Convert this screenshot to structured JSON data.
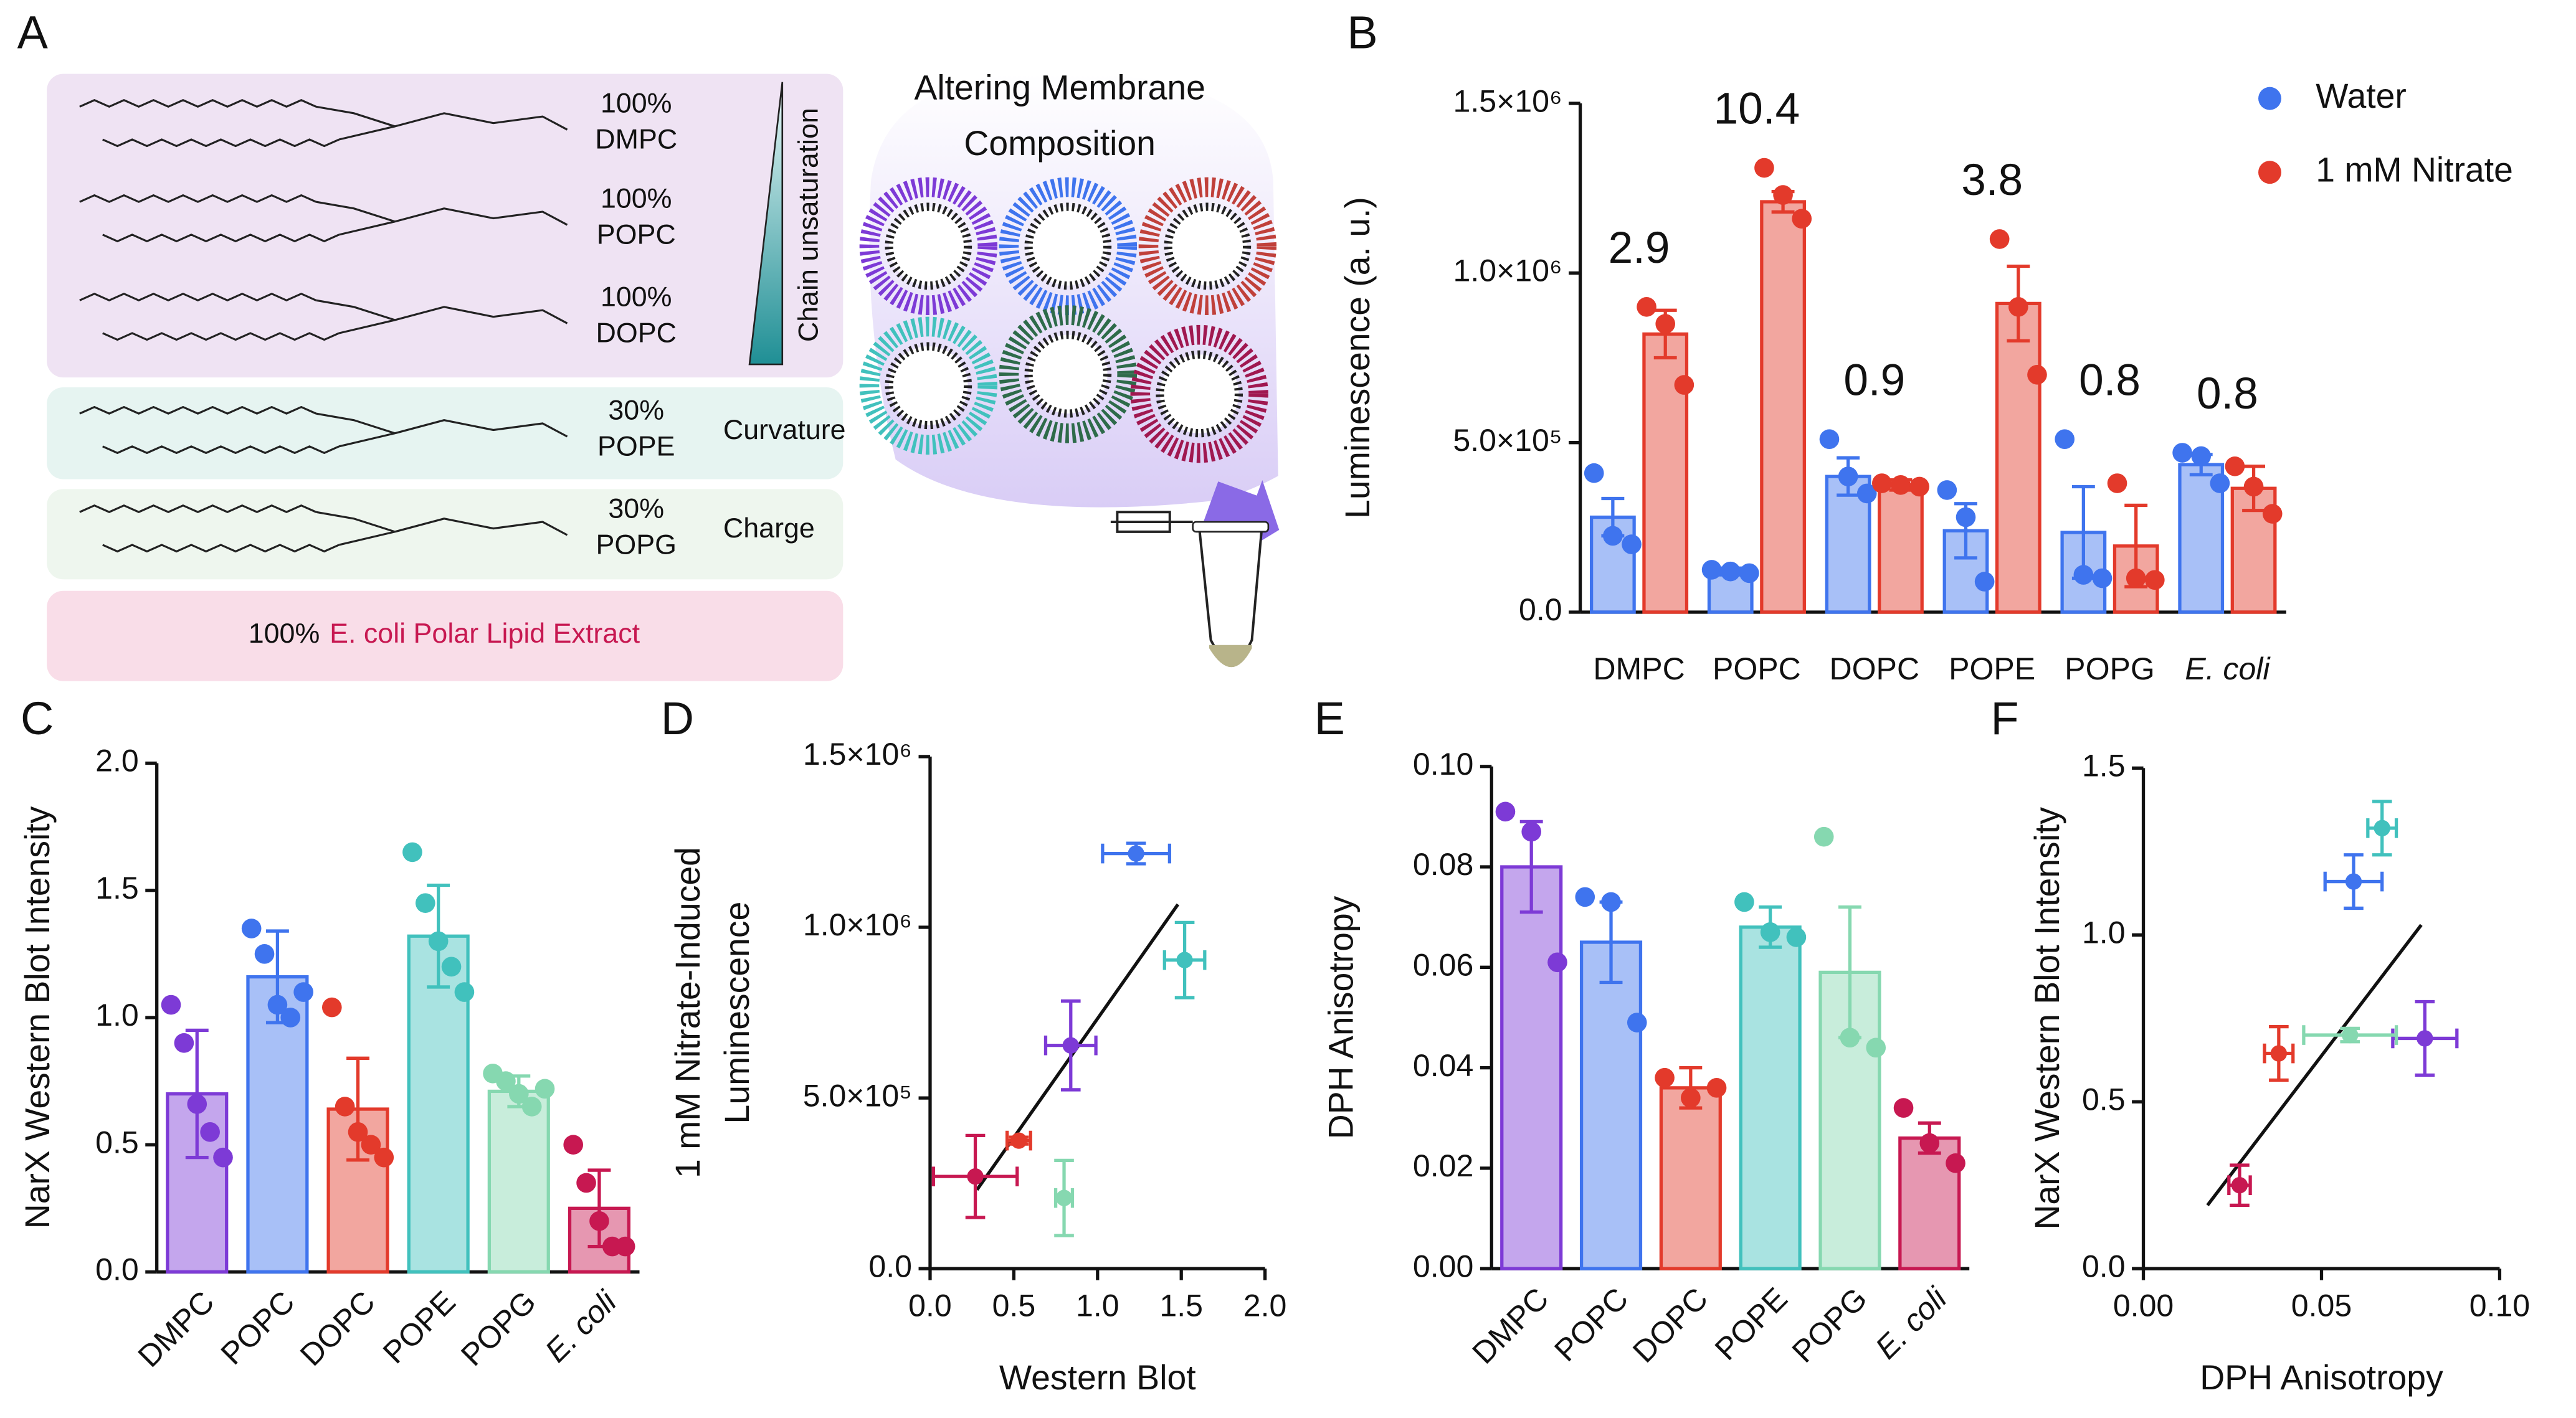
{
  "diagram": {
    "panel": "A",
    "title_lines": [
      "Altering Membrane",
      "Composition"
    ],
    "gradient_label": "Chain unsaturation",
    "lipids": [
      {
        "percent": "100%",
        "name": "DMPC",
        "color": "#7d3ad6"
      },
      {
        "percent": "100%",
        "name": "POPC",
        "color": "#3f74ee"
      },
      {
        "percent": "100%",
        "name": "DOPC",
        "color": "#e33a2b"
      },
      {
        "percent": "30%",
        "name": "POPE",
        "color": "#41c1bd",
        "property": "Curvature"
      },
      {
        "percent": "30%",
        "name": "POPG",
        "color": "#86d8b0",
        "property": "Charge"
      }
    ],
    "extract": {
      "percent": "100%",
      "name": "E. coli Polar Lipid Extract"
    }
  },
  "chart_data": [
    {
      "type": "bar",
      "panel": "B",
      "ylabel": "Luminescence  (a. u.)",
      "categories": [
        "DMPC",
        "POPC",
        "DOPC",
        "POPE",
        "POPG",
        "E. coli"
      ],
      "series": [
        {
          "name": "Water",
          "color": "#3f74ee",
          "values": [
            280000,
            120000,
            400000,
            240000,
            235000,
            435000
          ],
          "errors": [
            55000,
            10000,
            55000,
            80000,
            135000,
            30000
          ],
          "points": [
            [
              410000,
              225000,
              200000
            ],
            [
              125000,
              120000,
              115000
            ],
            [
              510000,
              400000,
              350000
            ],
            [
              360000,
              280000,
              90000
            ],
            [
              510000,
              110000,
              100000
            ],
            [
              470000,
              460000,
              380000
            ]
          ]
        },
        {
          "name": "1 mM Nitrate",
          "color": "#e33a2b",
          "values": [
            820000,
            1210000,
            375000,
            910000,
            195000,
            365000
          ],
          "errors": [
            70000,
            30000,
            15000,
            110000,
            120000,
            65000
          ],
          "points": [
            [
              900000,
              850000,
              670000
            ],
            [
              1310000,
              1230000,
              1160000
            ],
            [
              380000,
              375000,
              370000
            ],
            [
              1100000,
              900000,
              700000
            ],
            [
              380000,
              100000,
              95000
            ],
            [
              430000,
              370000,
              290000
            ]
          ]
        }
      ],
      "annotations": [
        "2.9",
        "10.4",
        "0.9",
        "3.8",
        "0.8",
        "0.8"
      ],
      "ylim": [
        0,
        1500000
      ],
      "yticks": [
        {
          "value": 0,
          "label": "0.0"
        },
        {
          "value": 500000,
          "label": "5.0×10⁵"
        },
        {
          "value": 1000000,
          "label": "1.0×10⁶"
        },
        {
          "value": 1500000,
          "label": "1.5×10⁶"
        }
      ],
      "legend": "top-right"
    },
    {
      "type": "bar",
      "panel": "C",
      "ylabel": "NarX Western Blot Intensity",
      "categories": [
        "DMPC",
        "POPC",
        "DOPC",
        "POPE",
        "POPG",
        "E. coli"
      ],
      "colors": [
        "#7d3ad6",
        "#3f74ee",
        "#e33a2b",
        "#41c1bd",
        "#86d8b0",
        "#c71851"
      ],
      "values": [
        0.7,
        1.16,
        0.64,
        1.32,
        0.71,
        0.25
      ],
      "errors": [
        0.25,
        0.18,
        0.2,
        0.2,
        0.06,
        0.15
      ],
      "points": [
        [
          1.05,
          0.9,
          0.66,
          0.55,
          0.45
        ],
        [
          1.35,
          1.25,
          1.05,
          1.0,
          1.1
        ],
        [
          1.04,
          0.65,
          0.55,
          0.5,
          0.45
        ],
        [
          1.65,
          1.45,
          1.3,
          1.2,
          1.1
        ],
        [
          0.78,
          0.75,
          0.7,
          0.65,
          0.72
        ],
        [
          0.5,
          0.35,
          0.2,
          0.1,
          0.1
        ]
      ],
      "ylim": [
        0,
        2
      ],
      "yticks": [
        {
          "value": 0,
          "label": "0.0"
        },
        0.5,
        {
          "value": 1,
          "label": "1.0"
        },
        1.5,
        {
          "value": 2,
          "label": "2.0"
        }
      ]
    },
    {
      "type": "scatter",
      "panel": "D",
      "xlabel": "Western Blot",
      "ylabel": [
        "1 mM Nitrate-Induced",
        "Luminescence"
      ],
      "x": [
        0.84,
        1.23,
        0.53,
        1.52,
        0.8,
        0.27
      ],
      "y": [
        654000,
        1216000,
        375000,
        904000,
        207000,
        270000
      ],
      "xerr": [
        0.15,
        0.2,
        0.07,
        0.12,
        0.05,
        0.25
      ],
      "yerr": [
        130000,
        30000,
        10000,
        110000,
        110000,
        120000
      ],
      "colors": [
        "#7d3ad6",
        "#3f74ee",
        "#e33a2b",
        "#41c1bd",
        "#86d8b0",
        "#c71851"
      ],
      "fit_line": {
        "x": [
          0.28,
          1.48
        ],
        "y": [
          231000,
          1067000
        ]
      },
      "xlim": [
        0,
        2
      ],
      "xticks": [
        {
          "value": 0,
          "label": "0.0"
        },
        0.5,
        {
          "value": 1,
          "label": "1.0"
        },
        1.5,
        {
          "value": 2,
          "label": "2.0"
        }
      ],
      "ylim": [
        0,
        1500000
      ],
      "yticks": [
        {
          "value": 0,
          "label": "0.0"
        },
        {
          "value": 500000,
          "label": "5.0×10⁵"
        },
        {
          "value": 1000000,
          "label": "1.0×10⁶"
        },
        {
          "value": 1500000,
          "label": "1.5×10⁶"
        }
      ]
    },
    {
      "type": "bar",
      "panel": "E",
      "ylabel": "DPH Anisotropy",
      "categories": [
        "DMPC",
        "POPC",
        "DOPC",
        "POPE",
        "POPG",
        "E. coli"
      ],
      "colors": [
        "#7d3ad6",
        "#3f74ee",
        "#e33a2b",
        "#41c1bd",
        "#86d8b0",
        "#c71851"
      ],
      "values": [
        0.08,
        0.065,
        0.036,
        0.068,
        0.059,
        0.026
      ],
      "errors": [
        0.009,
        0.008,
        0.004,
        0.004,
        0.013,
        0.003
      ],
      "points": [
        [
          0.091,
          0.087,
          0.061
        ],
        [
          0.074,
          0.073,
          0.049
        ],
        [
          0.038,
          0.034,
          0.036
        ],
        [
          0.073,
          0.067,
          0.066
        ],
        [
          0.086,
          0.046,
          0.044
        ],
        [
          0.032,
          0.025,
          0.021
        ]
      ],
      "ylim": [
        0,
        0.1
      ],
      "yticks": [
        {
          "value": 0,
          "label": "0.00"
        },
        0.02,
        0.04,
        0.06,
        0.08,
        {
          "value": 0.1,
          "label": "0.10"
        }
      ]
    },
    {
      "type": "scatter",
      "panel": "F",
      "xlabel": "DPH Anisotropy",
      "ylabel": "NarX Western Blot Intensity",
      "x": [
        0.079,
        0.059,
        0.038,
        0.067,
        0.058,
        0.027
      ],
      "y": [
        0.69,
        1.16,
        0.645,
        1.32,
        0.7,
        0.25
      ],
      "xerr": [
        0.009,
        0.008,
        0.004,
        0.004,
        0.013,
        0.003
      ],
      "yerr": [
        0.11,
        0.08,
        0.08,
        0.08,
        0.02,
        0.06
      ],
      "colors": [
        "#7d3ad6",
        "#3f74ee",
        "#e33a2b",
        "#41c1bd",
        "#86d8b0",
        "#c71851"
      ],
      "fit_line": {
        "x": [
          0.018,
          0.078
        ],
        "y": [
          0.19,
          1.03
        ]
      },
      "xlim": [
        0,
        0.1
      ],
      "xticks": [
        {
          "value": 0,
          "label": "0.00"
        },
        0.05,
        {
          "value": 0.1,
          "label": "0.10"
        }
      ],
      "ylim": [
        0,
        1.5
      ],
      "yticks": [
        {
          "value": 0,
          "label": "0.0"
        },
        0.5,
        {
          "value": 1,
          "label": "1.0"
        },
        1.5
      ]
    }
  ]
}
